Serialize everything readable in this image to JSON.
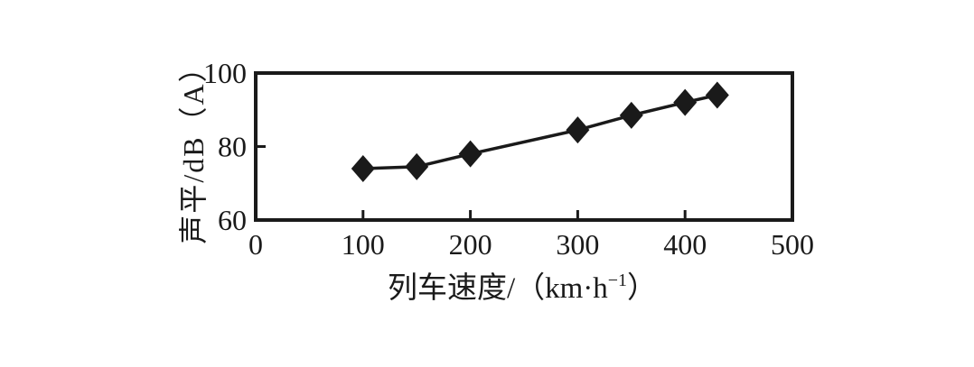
{
  "figure": {
    "background": "#ffffff",
    "ink": "#1a1a1a"
  },
  "chart_data": {
    "type": "line",
    "title": "",
    "xlabel": "列车速度/（km·h⁻¹）",
    "xlabel_parts": {
      "prefix": "列车速度/（km·h",
      "sup": "−1",
      "suffix": "）"
    },
    "ylabel": "声平/dB（A）",
    "x": [
      100,
      150,
      200,
      300,
      350,
      400,
      430
    ],
    "y": [
      74,
      74.5,
      78,
      84.5,
      88.5,
      92,
      94
    ],
    "xlim": [
      0,
      500
    ],
    "ylim": [
      60,
      100
    ],
    "x_ticks": [
      0,
      100,
      200,
      300,
      400,
      500
    ],
    "y_ticks": [
      60,
      80,
      100
    ],
    "grid": false,
    "marker": "diamond",
    "line_color": "#1a1a1a",
    "marker_color": "#1a1a1a"
  }
}
